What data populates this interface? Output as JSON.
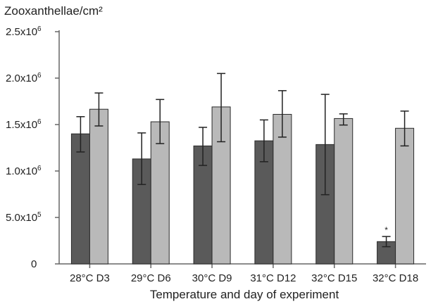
{
  "chart_data": {
    "type": "bar",
    "title": "",
    "ylabel": "Zooxanthellae/cm²",
    "xlabel": "Temperature and day of experiment",
    "ylim": [
      0,
      2500000
    ],
    "categories": [
      "28°C D3",
      "29°C D6",
      "30°C D9",
      "31°C D12",
      "32°C D15",
      "32°C D18"
    ],
    "yticks": [
      {
        "value": 0,
        "base": "0",
        "exp": ""
      },
      {
        "value": 500000,
        "base": "5.0x10",
        "exp": "5"
      },
      {
        "value": 1000000,
        "base": "1.0x10",
        "exp": "6"
      },
      {
        "value": 1500000,
        "base": "1.5x10",
        "exp": "6"
      },
      {
        "value": 2000000,
        "base": "2.0x10",
        "exp": "6"
      },
      {
        "value": 2500000,
        "base": "2.5x10",
        "exp": "6"
      }
    ],
    "series": [
      {
        "color": "#5a5a5a",
        "values": [
          1400000,
          1130000,
          1270000,
          1325000,
          1285000,
          240000
        ],
        "error_low": [
          1205000,
          855000,
          1060000,
          1100000,
          745000,
          185000
        ],
        "error_high": [
          1585000,
          1410000,
          1470000,
          1550000,
          1825000,
          295000
        ]
      },
      {
        "color": "#b9b9b9",
        "values": [
          1665000,
          1530000,
          1690000,
          1610000,
          1565000,
          1460000
        ],
        "error_low": [
          1485000,
          1295000,
          1315000,
          1365000,
          1495000,
          1270000
        ],
        "error_high": [
          1840000,
          1770000,
          2050000,
          1865000,
          1615000,
          1645000
        ]
      }
    ],
    "annotations": [
      {
        "text": "*",
        "category_index": 5,
        "series_index": 0
      }
    ],
    "grid": false,
    "legend": "none"
  }
}
